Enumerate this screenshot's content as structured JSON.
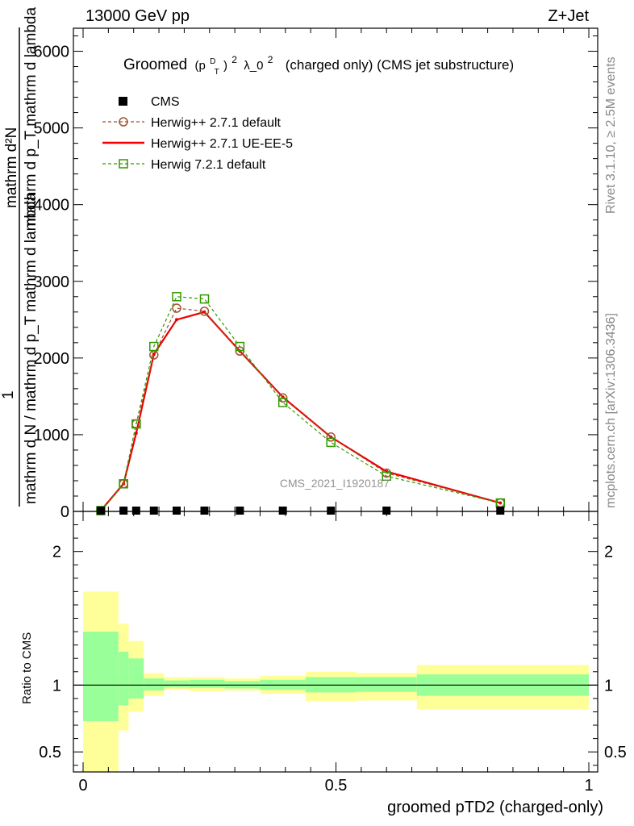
{
  "header": {
    "left": "13000 GeV pp",
    "right": "Z+Jet"
  },
  "side_labels": {
    "rivet": "Rivet 3.1.10, ≥ 2.5M events",
    "mcplots": "mcplots.cern.ch [arXiv:1306.3436]"
  },
  "watermark": "CMS_2021_I1920187",
  "chart_data": [
    {
      "type": "line",
      "title": "Groomed (p_T^D)^2 λ_0^2  (charged only) (CMS jet substructure)",
      "title_parts": {
        "prefix": "Groomed",
        "p": "(p",
        "sup_d": "D",
        "sub_t": "T",
        "close": ")",
        "sup_2": "2",
        "mid": "λ_0",
        "sup_2b": "2",
        "suffix": "(charged only) (CMS jet substructure)"
      },
      "ylabel": {
        "numerator_top": "mathrm d²N",
        "numerator_bottom": "mathrm d p_T mathrm d lambda",
        "one": "1",
        "denominator": "mathrm d N / mathrm d p_T mathrm d lambda"
      },
      "xlim": [
        0,
        1
      ],
      "ylim": [
        0,
        6300
      ],
      "yticks": [
        0,
        1000,
        2000,
        3000,
        4000,
        5000,
        6000
      ],
      "ytick_labels": [
        "0",
        "1000",
        "2000",
        "3000",
        "4000",
        "5000",
        "6000"
      ],
      "legend_position": "top-left",
      "series": [
        {
          "name": "CMS",
          "color": "#000000",
          "marker": "filled-square",
          "x": [
            0.035,
            0.08,
            0.105,
            0.14,
            0.185,
            0.24,
            0.31,
            0.395,
            0.49,
            0.6,
            0.825
          ],
          "y": [
            0,
            0,
            0,
            0,
            0,
            0,
            0,
            0,
            0,
            0,
            0
          ]
        },
        {
          "name": "Herwig++ 2.7.1 default",
          "color": "#a0522d",
          "marker": "open-circle",
          "style": "dashed",
          "x": [
            0.035,
            0.08,
            0.105,
            0.14,
            0.185,
            0.24,
            0.31,
            0.395,
            0.49,
            0.6,
            0.825
          ],
          "y": [
            10,
            360,
            1140,
            2040,
            2650,
            2610,
            2090,
            1480,
            970,
            500,
            110
          ]
        },
        {
          "name": "Herwig++ 2.7.1 UE-EE-5",
          "color": "#ee0000",
          "marker": "none",
          "style": "solid",
          "x": [
            0.035,
            0.08,
            0.105,
            0.14,
            0.185,
            0.24,
            0.31,
            0.395,
            0.49,
            0.6,
            0.825
          ],
          "y": [
            10,
            360,
            1020,
            2050,
            2500,
            2600,
            2090,
            1490,
            970,
            520,
            110
          ]
        },
        {
          "name": "Herwig 7.2.1 default",
          "color": "#339900",
          "marker": "open-square",
          "style": "dashed",
          "x": [
            0.035,
            0.08,
            0.105,
            0.14,
            0.185,
            0.24,
            0.31,
            0.395,
            0.49,
            0.6,
            0.825
          ],
          "y": [
            10,
            360,
            1140,
            2150,
            2800,
            2770,
            2150,
            1420,
            900,
            460,
            110
          ]
        }
      ]
    },
    {
      "type": "area",
      "ylabel": "Ratio to CMS",
      "xlabel": "groomed pTD2 (charged-only)",
      "xlim": [
        0,
        1
      ],
      "ylim": [
        0.35,
        2.3
      ],
      "yticks": [
        0.5,
        1,
        2
      ],
      "ytick_labels": [
        "0.5",
        "1",
        "2"
      ],
      "xticks": [
        0,
        0.5,
        1
      ],
      "xtick_labels": [
        "0",
        "0.5",
        "1"
      ],
      "reference_line": 1,
      "bands": {
        "edges": [
          0,
          0.07,
          0.09,
          0.12,
          0.16,
          0.21,
          0.28,
          0.35,
          0.44,
          0.54,
          0.66,
          1.0
        ],
        "inner_color": "#99ff99",
        "outer_color": "#ffff99",
        "inner_lo": [
          0.73,
          0.85,
          0.9,
          0.96,
          0.985,
          0.98,
          0.975,
          0.965,
          0.945,
          0.95,
          0.92
        ],
        "inner_hi": [
          1.4,
          1.25,
          1.2,
          1.05,
          1.035,
          1.04,
          1.03,
          1.04,
          1.06,
          1.06,
          1.08
        ],
        "outer_lo": [
          0.35,
          0.66,
          0.8,
          0.92,
          0.965,
          0.955,
          0.96,
          0.935,
          0.88,
          0.885,
          0.82
        ],
        "outer_hi": [
          1.7,
          1.46,
          1.33,
          1.09,
          1.06,
          1.06,
          1.05,
          1.07,
          1.1,
          1.09,
          1.15
        ]
      }
    }
  ]
}
